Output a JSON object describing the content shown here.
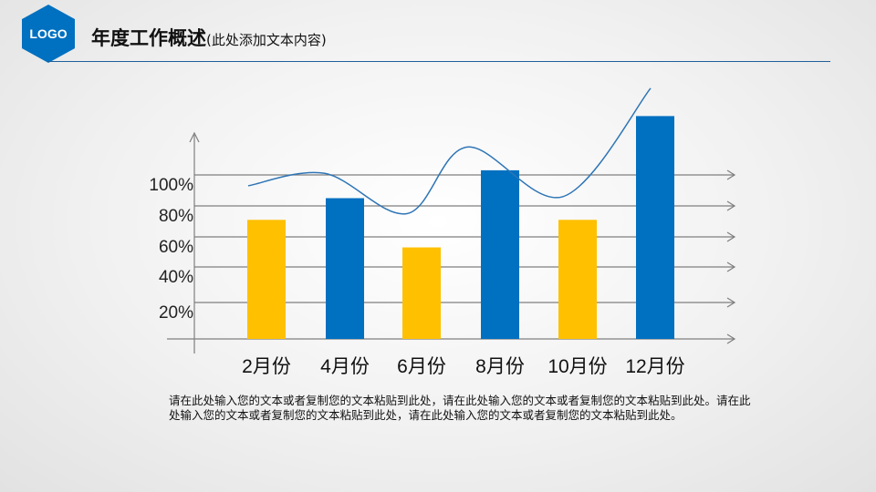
{
  "header": {
    "logo": "LOGO",
    "title": "年度工作概述",
    "subtitle": "(此处添加文本内容)"
  },
  "colors": {
    "primary": "#0070c0",
    "accent": "#ffc000",
    "rule": "#1f5f9a",
    "grid": "#7f7f7f"
  },
  "chart_data": {
    "type": "bar",
    "categories": [
      "2月份",
      "4月份",
      "6月份",
      "8月份",
      "10月份",
      "12月份"
    ],
    "values": [
      71,
      85,
      53,
      103,
      71,
      138
    ],
    "bar_colors": [
      "#ffc000",
      "#0070c0",
      "#ffc000",
      "#0070c0",
      "#ffc000",
      "#0070c0"
    ],
    "trend_line": [
      93,
      101,
      75,
      118,
      86,
      156
    ],
    "yticks": [
      "20%",
      "40%",
      "60%",
      "80%",
      "100%"
    ],
    "ytick_values": [
      20,
      40,
      60,
      80,
      100
    ],
    "grid": true
  },
  "body_text": "请在此处输入您的文本或者复制您的文本粘贴到此处，请在此处输入您的文本或者复制您的文本粘贴到此处。请在此处输入您的文本或者复制您的文本粘贴到此处，请在此处输入您的文本或者复制您的文本粘贴到此处。"
}
